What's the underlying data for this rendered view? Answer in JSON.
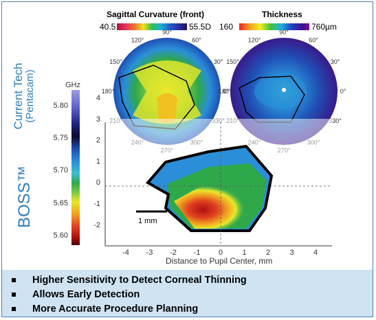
{
  "labels": {
    "sagittal_title": "Sagittal Curvature (front)",
    "sagittal_min": "40.5",
    "sagittal_max": "55.5D",
    "thickness_title": "Thickness",
    "thickness_min": "160",
    "thickness_max": "760µm",
    "current_tech": "Current Tech",
    "pentacam": "(Pentacam)",
    "boss": "BOSS™",
    "ghz": "GHz",
    "one_mm": "1 mm",
    "xlabel": "Distance to Pupil Center, mm"
  },
  "angle_labels": [
    "90°",
    "120°",
    "150°",
    "180°",
    "210°",
    "240°",
    "270°",
    "300°",
    "330°",
    "0°",
    "30°",
    "60°"
  ],
  "colorbar": {
    "ticks": [
      "5.80",
      "5.75",
      "5.70",
      "5.65",
      "5.60"
    ],
    "colors": [
      "#8d8fd8",
      "#4a4ec0",
      "#1a237e",
      "#0d0d40",
      "#1f4fb4",
      "#2a8fd8",
      "#3bbfd0",
      "#2fa84a",
      "#7ac943",
      "#e8e82a",
      "#f0a020",
      "#e04020",
      "#b01010",
      "#500000"
    ]
  },
  "axes": {
    "x_ticks": [
      "-4",
      "-3",
      "-2",
      "-1",
      "0",
      "1",
      "2",
      "3",
      "4"
    ],
    "y_ticks": [
      "4",
      "3",
      "2",
      "1",
      "0",
      "-1",
      "-2"
    ]
  },
  "bullets": [
    "Higher Sensitivity to Detect Corneal Thinning",
    "Allows Early Detection",
    "More Accurate Procedure Planning"
  ],
  "colors": {
    "accent": "#2f7fb8",
    "border": "#4a7fb5",
    "bullet_bg": "#cfe3f3"
  }
}
